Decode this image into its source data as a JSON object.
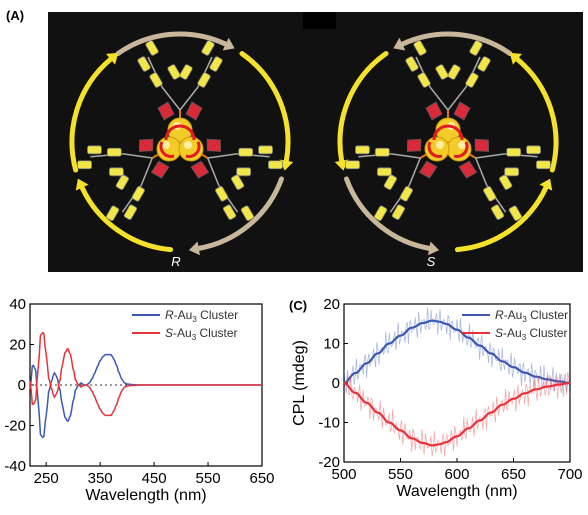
{
  "panels": {
    "a_label": "(A)",
    "c_label": "(C)",
    "r_label": "R",
    "s_label": "S"
  },
  "colors": {
    "background": "#111111",
    "gold": "#f3cc28",
    "ligand_yellow": "#f1e64a",
    "ligand_red": "#d92a3a",
    "bond_orange": "#e07818",
    "arrow_yellow": "#f4e22a",
    "arrow_tan": "#c9b79c",
    "r_series": "#3b59b3",
    "s_series": "#e8323a"
  },
  "chart_data": [
    {
      "type": "line",
      "id": "B",
      "xlabel": "Wavelength (nm)",
      "ylabel": "",
      "xlim": [
        220,
        650
      ],
      "ylim": [
        -40,
        40
      ],
      "xticks": [
        250,
        350,
        450,
        550,
        650
      ],
      "yticks": [
        -40,
        -20,
        0,
        20,
        40
      ],
      "zero_line": "dotted",
      "legend_position": "top-right",
      "series": [
        {
          "name": "R-Au",
          "name_prefix": "R",
          "name_rest": "-Au",
          "name_sub": "3",
          "name_suffix": " Cluster",
          "color": "#3b59b3",
          "x": [
            220,
            225,
            230,
            235,
            240,
            245,
            250,
            255,
            260,
            265,
            270,
            275,
            280,
            285,
            290,
            295,
            300,
            305,
            310,
            315,
            320,
            325,
            330,
            335,
            340,
            345,
            350,
            355,
            360,
            365,
            370,
            375,
            380,
            385,
            390,
            395,
            400,
            410,
            420,
            450,
            500,
            550,
            600,
            650
          ],
          "y": [
            -2,
            10,
            8,
            -8,
            -25,
            -26,
            -15,
            -3,
            2,
            6,
            4,
            -2,
            -10,
            -16,
            -18,
            -15,
            -8,
            -2,
            0,
            1,
            0,
            0,
            1,
            3,
            6,
            9,
            12,
            14,
            15,
            15,
            15,
            13,
            10,
            6,
            3,
            1,
            0.5,
            0.2,
            0,
            0,
            0,
            0,
            0,
            0
          ]
        },
        {
          "name": "S-Au",
          "name_prefix": "S",
          "name_rest": "-Au",
          "name_sub": "3",
          "name_suffix": " Cluster",
          "color": "#e8323a",
          "x": [
            220,
            225,
            230,
            235,
            240,
            245,
            250,
            255,
            260,
            265,
            270,
            275,
            280,
            285,
            290,
            295,
            300,
            305,
            310,
            315,
            320,
            325,
            330,
            335,
            340,
            345,
            350,
            355,
            360,
            365,
            370,
            375,
            380,
            385,
            390,
            395,
            400,
            410,
            420,
            450,
            500,
            550,
            600,
            650
          ],
          "y": [
            2,
            -10,
            -8,
            8,
            25,
            26,
            15,
            3,
            -2,
            -6,
            -4,
            2,
            10,
            16,
            18,
            15,
            8,
            2,
            0,
            -1,
            0,
            0,
            -1,
            -3,
            -6,
            -9,
            -12,
            -14,
            -15,
            -15,
            -15,
            -13,
            -10,
            -6,
            -3,
            -1,
            -0.5,
            -0.2,
            0,
            0,
            0,
            0,
            0,
            0
          ]
        }
      ]
    },
    {
      "type": "line",
      "id": "C",
      "xlabel": "Wavelength (nm)",
      "ylabel": "CPL (mdeg)",
      "xlim": [
        500,
        700
      ],
      "ylim": [
        -20,
        20
      ],
      "xticks": [
        500,
        550,
        600,
        650,
        700
      ],
      "yticks": [
        -20,
        -10,
        0,
        10,
        20
      ],
      "legend_position": "top-right",
      "series": [
        {
          "name": "R-Au",
          "name_prefix": "R",
          "name_rest": "-Au",
          "name_sub": "3",
          "name_suffix": " Cluster",
          "color": "#3b59b3",
          "x": [
            500,
            510,
            520,
            530,
            540,
            550,
            560,
            570,
            578,
            585,
            590,
            600,
            610,
            620,
            630,
            640,
            650,
            660,
            670,
            680,
            690,
            700
          ],
          "y": [
            0,
            2.5,
            5,
            7.5,
            10,
            12,
            14,
            15.2,
            15.8,
            15.5,
            15,
            13.5,
            11.5,
            9.5,
            7.5,
            5.5,
            4,
            2.6,
            1.6,
            0.9,
            0.4,
            0
          ]
        },
        {
          "name": "S-Au",
          "name_prefix": "S",
          "name_rest": "-Au",
          "name_sub": "3",
          "name_suffix": " Cluster",
          "color": "#e8323a",
          "x": [
            500,
            510,
            520,
            530,
            540,
            550,
            560,
            570,
            578,
            585,
            590,
            600,
            610,
            620,
            630,
            640,
            650,
            660,
            670,
            680,
            690,
            700
          ],
          "y": [
            0,
            -2.5,
            -5,
            -7.5,
            -10,
            -12,
            -14,
            -15.2,
            -15.8,
            -15.5,
            -15,
            -13.5,
            -11.5,
            -9.5,
            -7.5,
            -5.5,
            -4,
            -2.6,
            -1.6,
            -0.9,
            -0.4,
            0
          ]
        }
      ]
    }
  ]
}
